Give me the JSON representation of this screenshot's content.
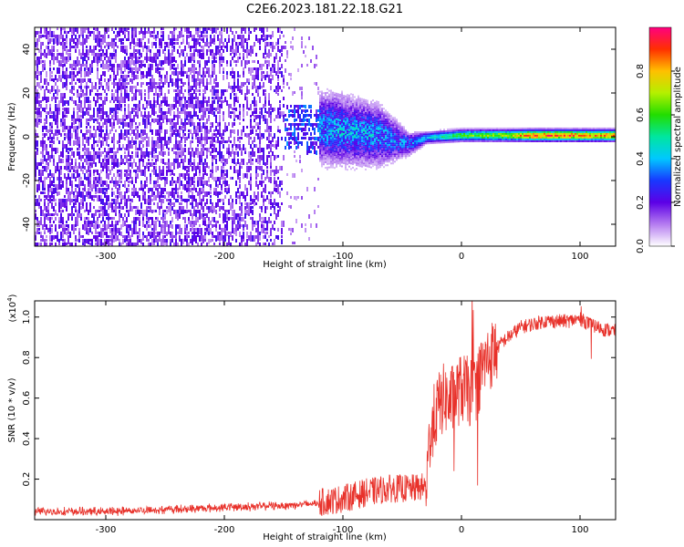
{
  "title": "C2E6.2023.181.22.18.G21",
  "chart_data": [
    {
      "type": "heatmap",
      "xlabel": "Height of straight line (km)",
      "ylabel": "Frequency (Hz)",
      "xlim": [
        -360,
        130
      ],
      "ylim": [
        -50,
        50
      ],
      "xticks": [
        -300,
        -200,
        -100,
        0,
        100
      ],
      "yticks": [
        -40,
        -20,
        0,
        20,
        40
      ],
      "colorbar": {
        "label": "Normalized spectral amplitude",
        "ticks": [
          0.0,
          0.2,
          0.4,
          0.6,
          0.8
        ],
        "range": [
          0,
          1
        ]
      },
      "profile": [
        {
          "x": -360,
          "center": 0,
          "spread": 50,
          "amp": 0.12
        },
        {
          "x": -250,
          "center": 0,
          "spread": 50,
          "amp": 0.12
        },
        {
          "x": -160,
          "center": 0,
          "spread": 48,
          "amp": 0.1
        },
        {
          "x": -150,
          "center": 5,
          "spread": 10,
          "amp": 0.3
        },
        {
          "x": -110,
          "center": 4,
          "spread": 12,
          "amp": 0.35
        },
        {
          "x": -70,
          "center": 1,
          "spread": 10,
          "amp": 0.35
        },
        {
          "x": -45,
          "center": -3,
          "spread": 4,
          "amp": 0.3
        },
        {
          "x": -30,
          "center": 0,
          "spread": 2,
          "amp": 0.4
        },
        {
          "x": 0,
          "center": 1,
          "spread": 2,
          "amp": 0.6
        },
        {
          "x": 40,
          "center": 1,
          "spread": 2,
          "amp": 0.7
        },
        {
          "x": 60,
          "center": 1,
          "spread": 2,
          "amp": 0.9
        },
        {
          "x": 100,
          "center": 1,
          "spread": 2,
          "amp": 0.85
        },
        {
          "x": 130,
          "center": 1,
          "spread": 2,
          "amp": 0.8
        }
      ]
    },
    {
      "type": "line",
      "xlabel": "Height of straight line (km)",
      "ylabel": "SNR (10 * v/v)",
      "yscale_label": "(x10",
      "yscale_exp": "4",
      "yscale_close": ")",
      "xlim": [
        -360,
        130
      ],
      "ylim": [
        0,
        1.08
      ],
      "xticks": [
        -300,
        -200,
        -100,
        0,
        100
      ],
      "yticks": [
        0.2,
        0.4,
        0.6,
        0.8,
        1.0
      ],
      "series": [
        {
          "color": "#e8312a",
          "x": [
            -360,
            -300,
            -250,
            -200,
            -150,
            -120,
            -100,
            -80,
            -60,
            -40,
            -30,
            -26,
            -20,
            -15,
            -10,
            0,
            10,
            20,
            35,
            50,
            70,
            90,
            100,
            110,
            120,
            130
          ],
          "y": [
            0.03,
            0.03,
            0.04,
            0.05,
            0.06,
            0.07,
            0.09,
            0.12,
            0.14,
            0.14,
            0.15,
            0.45,
            0.55,
            0.6,
            0.58,
            0.65,
            0.62,
            0.78,
            0.88,
            0.95,
            0.98,
            0.98,
            0.99,
            0.96,
            0.94,
            0.93
          ]
        }
      ]
    }
  ]
}
